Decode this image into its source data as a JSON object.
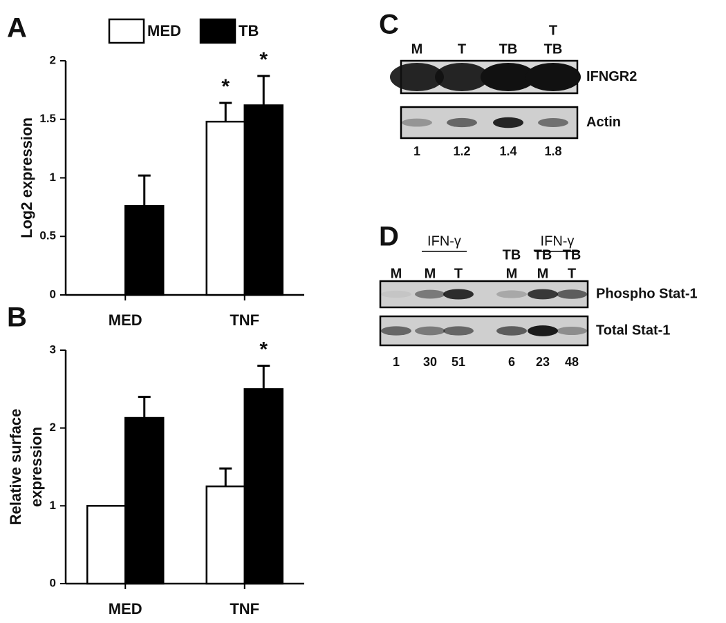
{
  "chart_data": [
    {
      "type": "bar",
      "panel": "A",
      "ylabel": "Log2 expression",
      "categories": [
        "MED",
        "TNF"
      ],
      "series": [
        {
          "name": "MED",
          "color": "#ffffff",
          "values": [
            0,
            1.48
          ],
          "errors": [
            null,
            0.16
          ]
        },
        {
          "name": "TB",
          "color": "#000000",
          "values": [
            0.76,
            1.62
          ],
          "errors": [
            0.26,
            0.25
          ]
        }
      ],
      "ylim": [
        0,
        2
      ],
      "yticks": [
        0,
        0.5,
        1,
        1.5,
        2
      ],
      "legend": "top",
      "annotations": [
        {
          "text": "*",
          "series": 0,
          "category": 1
        },
        {
          "text": "*",
          "series": 1,
          "category": 1
        }
      ]
    },
    {
      "type": "bar",
      "panel": "B",
      "ylabel": [
        "Relative surface",
        "expression"
      ],
      "categories": [
        "MED",
        "TNF"
      ],
      "series": [
        {
          "color": "#ffffff",
          "values": [
            1,
            1.25
          ],
          "errors": [
            null,
            0.23
          ]
        },
        {
          "color": "#000000",
          "values": [
            2.13,
            2.5
          ],
          "errors": [
            0.27,
            0.3
          ]
        }
      ],
      "ylim": [
        0,
        3
      ],
      "yticks": [
        0,
        1,
        2,
        3
      ],
      "annotations": [
        {
          "text": "*",
          "series": 1,
          "category": 1
        }
      ]
    }
  ],
  "blots": [
    {
      "panel": "C",
      "lanes": [
        [
          "M"
        ],
        [
          "T"
        ],
        [
          "TB"
        ],
        [
          "T",
          "TB"
        ]
      ],
      "rows": [
        "IFNGR2",
        "Actin"
      ],
      "quantities": [
        1,
        1.2,
        1.4,
        1.8
      ]
    },
    {
      "panel": "D",
      "groups": [
        {
          "label": "IFN-γ",
          "lanes": [
            1,
            2
          ]
        },
        {
          "label": "IFN-γ",
          "lanes": [
            4,
            5
          ]
        }
      ],
      "lanes": [
        [
          "M"
        ],
        [
          "M"
        ],
        [
          "T"
        ],
        [
          "TB",
          "M"
        ],
        [
          "TB",
          "M"
        ],
        [
          "TB",
          "T"
        ]
      ],
      "rows": [
        "Phospho Stat-1",
        "Total Stat-1"
      ],
      "quantities": [
        1,
        30,
        51,
        6,
        23,
        48
      ]
    }
  ]
}
